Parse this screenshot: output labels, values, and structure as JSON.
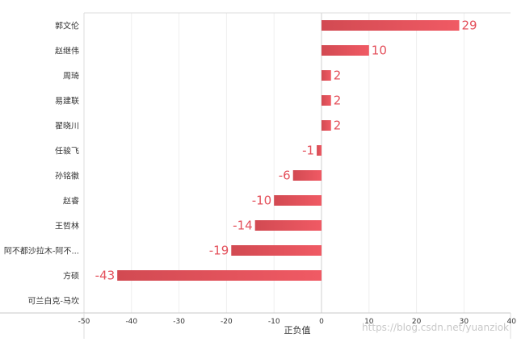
{
  "chart_data": {
    "type": "bar",
    "orientation": "horizontal",
    "categories": [
      "郭文伦",
      "赵继伟",
      "周琦",
      "易建联",
      "翟晓川",
      "任骏飞",
      "孙铭徽",
      "赵睿",
      "王哲林",
      "阿不都沙拉木-阿不...",
      "方硕",
      "可兰白克-马坎"
    ],
    "values": [
      29,
      10,
      2,
      2,
      2,
      -1,
      -6,
      -10,
      -14,
      -19,
      -43,
      null
    ],
    "data_labels": [
      "29",
      "10",
      "2",
      "2",
      "2",
      "-1",
      "-6",
      "-10",
      "-14",
      "-19",
      "-43",
      ""
    ],
    "xlim": [
      -50,
      40
    ],
    "xticks": [
      -50,
      -40,
      -30,
      -20,
      -10,
      0,
      10,
      20,
      30,
      40
    ],
    "xlabel": "正负值",
    "grid": "vertical",
    "bar_color": "#e4505b",
    "bar_color_dark": "#d24a52"
  },
  "watermark": "https://blog.csdn.net/yuanziok"
}
